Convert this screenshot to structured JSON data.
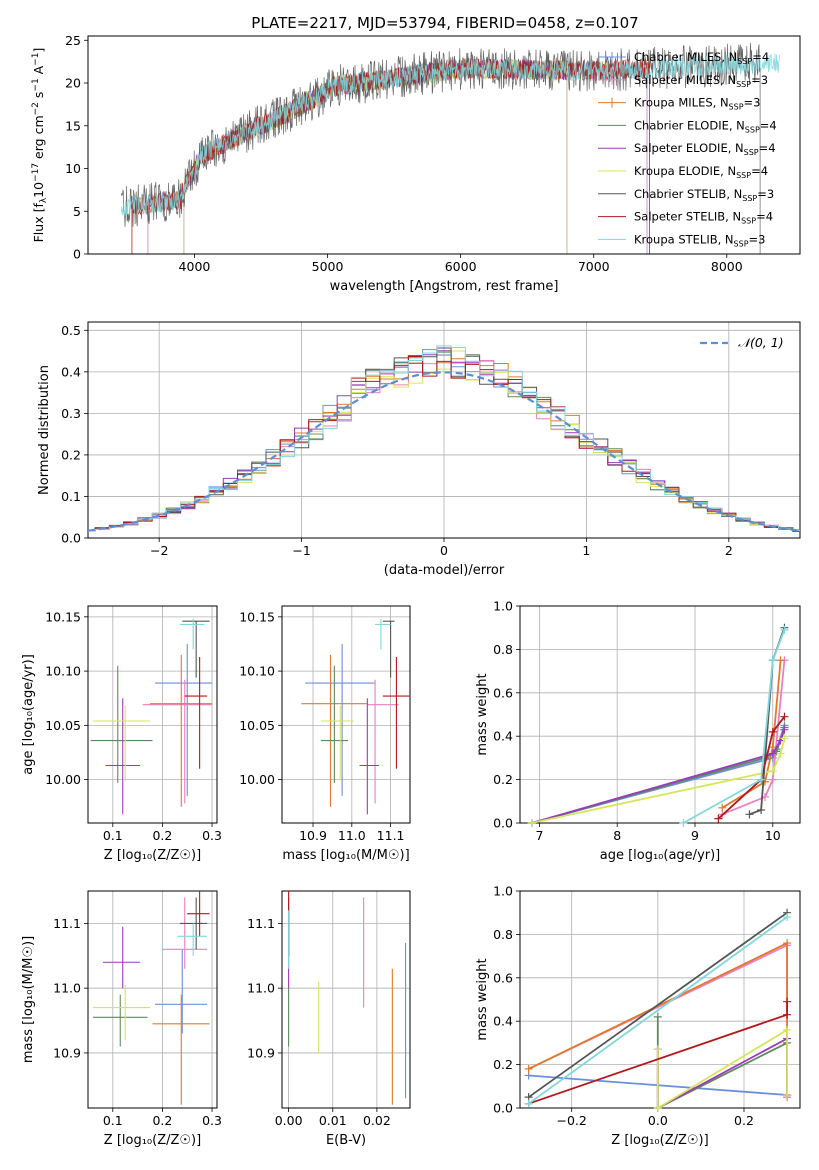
{
  "figure": {
    "title": "PLATE=2217, MJD=53794, FIBERID=0458, z=0.107"
  },
  "colors": {
    "Chabrier MILES": "#6a8fdc",
    "Salpeter MILES": "#ed7fc0",
    "Kroupa MILES": "#e07a2a",
    "Chabrier ELODIE": "#5f8a5f",
    "Salpeter ELODIE": "#9a3cb8",
    "Kroupa ELODIE": "#d6e65a",
    "Chabrier STELIB": "#555555",
    "Salpeter STELIB": "#b5171c",
    "Kroupa STELIB": "#7fd8de",
    "normal_curve": "#5b8fd6"
  },
  "chart_data": [
    {
      "id": "spectrum",
      "type": "line",
      "title": "PLATE=2217, MJD=53794, FIBERID=0458, z=0.107",
      "xlabel": "wavelength [Angstrom, rest frame]",
      "ylabel_parts": [
        "Flux [f",
        "λ",
        "10",
        "−17",
        " erg cm",
        "−2",
        " s",
        "−1",
        " A",
        "−1",
        "]"
      ],
      "xlim": [
        3200,
        8550
      ],
      "ylim": [
        0,
        25.5
      ],
      "xticks": [
        4000,
        5000,
        6000,
        7000,
        8000
      ],
      "yticks": [
        0,
        5,
        10,
        15,
        20,
        25
      ],
      "grid": false,
      "legend_position": "right",
      "series": [
        {
          "name": "Chabrier MILES",
          "sub": "SSP",
          "n": "4",
          "color": "#6a8fdc",
          "range": [
            3650,
            7400
          ],
          "marker": true
        },
        {
          "name": "Salpeter MILES",
          "sub": "SSP",
          "n": "3",
          "color": "#ed7fc0",
          "range": [
            3650,
            7400
          ],
          "marker": true
        },
        {
          "name": "Kroupa MILES",
          "sub": "SSP",
          "n": "3",
          "color": "#e07a2a",
          "range": [
            3530,
            7420
          ],
          "marker": true
        },
        {
          "name": "Chabrier ELODIE",
          "sub": "SSP",
          "n": "4",
          "color": "#5f8a5f",
          "range": [
            3920,
            6800
          ],
          "marker": false
        },
        {
          "name": "Salpeter ELODIE",
          "sub": "SSP",
          "n": "4",
          "color": "#9a3cb8",
          "range": [
            3920,
            6800
          ],
          "marker": false
        },
        {
          "name": "Kroupa ELODIE",
          "sub": "SSP",
          "n": "4",
          "color": "#d6e65a",
          "range": [
            3920,
            6800
          ],
          "marker": false
        },
        {
          "name": "Chabrier STELIB",
          "sub": "SSP",
          "n": "3",
          "color": "#555555",
          "range": [
            3450,
            8250
          ],
          "marker": false
        },
        {
          "name": "Salpeter STELIB",
          "sub": "SSP",
          "n": "4",
          "color": "#b5171c",
          "range": [
            3530,
            7420
          ],
          "marker": false
        },
        {
          "name": "Kroupa STELIB",
          "sub": "SSP",
          "n": "3",
          "color": "#7fd8de",
          "range": [
            3450,
            8400
          ],
          "marker": false
        }
      ]
    },
    {
      "id": "residuals",
      "type": "line",
      "xlabel": "(data-model)/error",
      "ylabel": "Normed distribution",
      "xlim": [
        -2.5,
        2.5
      ],
      "ylim": [
        0,
        0.52
      ],
      "xticks": [
        -2,
        -1,
        0,
        1,
        2
      ],
      "yticks": [
        0.0,
        0.1,
        0.2,
        0.3,
        0.4,
        0.5
      ],
      "grid": true,
      "legend_position": "top-right",
      "legend_label": "𝒩(0, 1)",
      "bin_width": 0.1,
      "series_colors": [
        "#6a8fdc",
        "#ed7fc0",
        "#e07a2a",
        "#5f8a5f",
        "#9a3cb8",
        "#d6e65a",
        "#555555",
        "#b5171c",
        "#7fd8de"
      ]
    },
    {
      "id": "age-vs-Z",
      "type": "scatter",
      "xlabel": "Z [log₁₀(Z/Z☉)]",
      "ylabel": "age  [log₁₀(age/yr)]",
      "xlim": [
        0.05,
        0.31
      ],
      "ylim": [
        9.96,
        10.16
      ],
      "xticks": [
        0.1,
        0.2,
        0.3
      ],
      "yticks": [
        10.0,
        10.05,
        10.1,
        10.15
      ],
      "grid": true,
      "points": [
        {
          "x": 0.25,
          "y": 10.089,
          "xerr": [
            0.185,
            0.3
          ],
          "yerr": [
            9.985,
            10.125
          ],
          "color": "#6a8fdc"
        },
        {
          "x": 0.245,
          "y": 10.069,
          "xerr": [
            0.16,
            0.3
          ],
          "yerr": [
            9.978,
            10.092
          ],
          "color": "#ed7fc0"
        },
        {
          "x": 0.238,
          "y": 10.07,
          "xerr": [
            0.175,
            0.3
          ],
          "yerr": [
            9.975,
            10.115
          ],
          "color": "#e07a2a"
        },
        {
          "x": 0.11,
          "y": 10.036,
          "xerr": [
            0.055,
            0.18
          ],
          "yerr": [
            9.997,
            10.105
          ],
          "color": "#5f8a5f"
        },
        {
          "x": 0.12,
          "y": 10.013,
          "xerr": [
            0.085,
            0.155
          ],
          "yerr": [
            9.968,
            10.075
          ],
          "color": "#9a3cb8"
        },
        {
          "x": 0.125,
          "y": 10.054,
          "xerr": [
            0.06,
            0.175
          ],
          "yerr": [
            9.999,
            10.068
          ],
          "color": "#d6e65a"
        },
        {
          "x": 0.268,
          "y": 10.146,
          "xerr": [
            0.24,
            0.295
          ],
          "yerr": [
            10.094,
            10.146
          ],
          "color": "#555555"
        },
        {
          "x": 0.275,
          "y": 10.077,
          "xerr": [
            0.245,
            0.29
          ],
          "yerr": [
            10.01,
            10.113
          ],
          "color": "#b5171c"
        },
        {
          "x": 0.262,
          "y": 10.143,
          "xerr": [
            0.235,
            0.285
          ],
          "yerr": [
            10.12,
            10.148
          ],
          "color": "#7fd8de"
        }
      ]
    },
    {
      "id": "age-vs-mass",
      "type": "scatter",
      "xlabel": "mass [log₁₀(M/M☉)]",
      "ylabel": "",
      "xlim": [
        10.82,
        11.15
      ],
      "ylim": [
        9.96,
        10.16
      ],
      "xticks": [
        10.9,
        11.0,
        11.1
      ],
      "yticks": [
        10.0,
        10.05,
        10.1,
        10.15
      ],
      "grid": true,
      "points": [
        {
          "x": 10.975,
          "y": 10.089,
          "xerr": [
            10.88,
            11.06
          ],
          "yerr": [
            9.985,
            10.125
          ],
          "color": "#6a8fdc"
        },
        {
          "x": 11.06,
          "y": 10.069,
          "xerr": [
            11.04,
            11.12
          ],
          "yerr": [
            9.978,
            10.092
          ],
          "color": "#ed7fc0"
        },
        {
          "x": 10.945,
          "y": 10.07,
          "xerr": [
            10.87,
            11.04
          ],
          "yerr": [
            9.975,
            10.115
          ],
          "color": "#e07a2a"
        },
        {
          "x": 10.955,
          "y": 10.036,
          "xerr": [
            10.92,
            10.99
          ],
          "yerr": [
            9.997,
            10.105
          ],
          "color": "#5f8a5f"
        },
        {
          "x": 11.04,
          "y": 10.013,
          "xerr": [
            11.02,
            11.07
          ],
          "yerr": [
            9.968,
            10.075
          ],
          "color": "#9a3cb8"
        },
        {
          "x": 10.97,
          "y": 10.054,
          "xerr": [
            10.92,
            11.005
          ],
          "yerr": [
            9.999,
            10.068
          ],
          "color": "#d6e65a"
        },
        {
          "x": 11.1,
          "y": 10.146,
          "xerr": [
            11.08,
            11.11
          ],
          "yerr": [
            10.094,
            10.146
          ],
          "color": "#555555"
        },
        {
          "x": 11.115,
          "y": 10.077,
          "xerr": [
            11.08,
            11.15
          ],
          "yerr": [
            10.01,
            10.113
          ],
          "color": "#b5171c"
        },
        {
          "x": 11.075,
          "y": 10.143,
          "xerr": [
            11.06,
            11.1
          ],
          "yerr": [
            10.12,
            10.148
          ],
          "color": "#7fd8de"
        }
      ]
    },
    {
      "id": "mass-weight-vs-age",
      "type": "line",
      "xlabel": "age  [log₁₀(age/yr)]",
      "ylabel": "mass weight",
      "xlim": [
        6.75,
        10.35
      ],
      "ylim": [
        0,
        1.0
      ],
      "xticks": [
        7,
        8,
        9,
        10
      ],
      "yticks": [
        0.0,
        0.2,
        0.4,
        0.6,
        0.8,
        1.0
      ],
      "grid": true,
      "series": [
        {
          "color": "#6a8fdc",
          "x": [
            6.9,
            10.0,
            10.05,
            10.15
          ],
          "y": [
            0.0,
            0.3,
            0.34,
            0.45
          ],
          "marker": true
        },
        {
          "color": "#ed7fc0",
          "x": [
            9.35,
            9.9,
            10.0,
            10.15
          ],
          "y": [
            0.04,
            0.12,
            0.2,
            0.75
          ],
          "marker": true
        },
        {
          "color": "#e07a2a",
          "x": [
            9.35,
            9.9,
            10.0,
            10.1
          ],
          "y": [
            0.07,
            0.19,
            0.35,
            0.75
          ],
          "marker": true
        },
        {
          "color": "#5f8a5f",
          "x": [
            6.9,
            9.9,
            10.05,
            10.15
          ],
          "y": [
            0.0,
            0.3,
            0.33,
            0.44
          ],
          "marker": true
        },
        {
          "color": "#9a3cb8",
          "x": [
            6.9,
            10.0,
            10.1,
            10.15
          ],
          "y": [
            0.0,
            0.32,
            0.38,
            0.43
          ],
          "marker": true
        },
        {
          "color": "#d6e65a",
          "x": [
            6.9,
            10.0,
            10.1,
            10.15
          ],
          "y": [
            0.0,
            0.24,
            0.32,
            0.39
          ],
          "marker": true
        },
        {
          "color": "#555555",
          "x": [
            9.7,
            9.85,
            10.0,
            10.15
          ],
          "y": [
            0.04,
            0.06,
            0.75,
            0.9
          ],
          "marker": true
        },
        {
          "color": "#b5171c",
          "x": [
            9.3,
            9.85,
            10.0,
            10.15
          ],
          "y": [
            0.02,
            0.2,
            0.42,
            0.49
          ],
          "marker": true
        },
        {
          "color": "#7fd8de",
          "x": [
            8.85,
            9.85,
            10.0,
            10.15
          ],
          "y": [
            0.0,
            0.2,
            0.75,
            0.89
          ],
          "marker": true
        }
      ]
    },
    {
      "id": "mass-vs-Z",
      "type": "scatter",
      "xlabel": "Z [log₁₀(Z/Z☉)]",
      "ylabel": "mass [log₁₀(M/M☉)]",
      "xlim": [
        0.05,
        0.31
      ],
      "ylim": [
        10.815,
        11.15
      ],
      "xticks": [
        0.1,
        0.2,
        0.3
      ],
      "yticks": [
        10.9,
        11.0,
        11.1
      ],
      "grid": true,
      "points": [
        {
          "x": 0.24,
          "y": 10.975,
          "xerr": [
            0.185,
            0.29
          ],
          "yerr": [
            10.93,
            11.06
          ],
          "color": "#6a8fdc"
        },
        {
          "x": 0.245,
          "y": 11.06,
          "xerr": [
            0.2,
            0.29
          ],
          "yerr": [
            11.03,
            11.14
          ],
          "color": "#ed7fc0"
        },
        {
          "x": 0.238,
          "y": 10.945,
          "xerr": [
            0.18,
            0.295
          ],
          "yerr": [
            10.82,
            10.99
          ],
          "color": "#e07a2a"
        },
        {
          "x": 0.115,
          "y": 10.955,
          "xerr": [
            0.06,
            0.17
          ],
          "yerr": [
            10.91,
            10.99
          ],
          "color": "#5f8a5f"
        },
        {
          "x": 0.12,
          "y": 11.04,
          "xerr": [
            0.08,
            0.155
          ],
          "yerr": [
            11.0,
            11.095
          ],
          "color": "#9a3cb8"
        },
        {
          "x": 0.125,
          "y": 10.97,
          "xerr": [
            0.06,
            0.175
          ],
          "yerr": [
            10.92,
            11.005
          ],
          "color": "#d6e65a"
        },
        {
          "x": 0.268,
          "y": 11.1,
          "xerr": [
            0.235,
            0.29
          ],
          "yerr": [
            11.06,
            11.14
          ],
          "color": "#555555"
        },
        {
          "x": 0.275,
          "y": 11.115,
          "xerr": [
            0.25,
            0.295
          ],
          "yerr": [
            11.08,
            11.15
          ],
          "color": "#b5171c"
        },
        {
          "x": 0.262,
          "y": 11.08,
          "xerr": [
            0.23,
            0.29
          ],
          "yerr": [
            11.05,
            11.1
          ],
          "color": "#7fd8de"
        }
      ]
    },
    {
      "id": "mass-vs-EBV",
      "type": "scatter",
      "xlabel": "E(B-V)",
      "ylabel": "",
      "xlim": [
        -0.0015,
        0.0275
      ],
      "ylim": [
        10.815,
        11.15
      ],
      "xticks": [
        0.0,
        0.01,
        0.02
      ],
      "yticks": [
        10.9,
        11.0,
        11.1
      ],
      "grid": true,
      "points": [
        {
          "x": 0.0265,
          "y": 10.975,
          "yerr": [
            10.83,
            11.07
          ],
          "color": "#6a8fdc"
        },
        {
          "x": 0.017,
          "y": 11.06,
          "yerr": [
            10.97,
            11.14
          ],
          "color": "#ed7fc0"
        },
        {
          "x": 0.0235,
          "y": 10.945,
          "yerr": [
            10.82,
            11.03
          ],
          "color": "#e07a2a"
        },
        {
          "x": 0.0,
          "y": 10.955,
          "yerr": [
            10.91,
            11.0
          ],
          "color": "#5f8a5f"
        },
        {
          "x": 0.0,
          "y": 11.04,
          "yerr": [
            11.0,
            11.12
          ],
          "color": "#9a3cb8"
        },
        {
          "x": 0.0068,
          "y": 10.97,
          "yerr": [
            10.9,
            11.01
          ],
          "color": "#d6e65a"
        },
        {
          "x": 0.0,
          "y": 11.1,
          "yerr": [
            11.05,
            11.14
          ],
          "color": "#555555"
        },
        {
          "x": 0.0,
          "y": 11.115,
          "yerr": [
            11.05,
            11.15
          ],
          "color": "#b5171c"
        },
        {
          "x": 0.0,
          "y": 11.08,
          "yerr": [
            11.03,
            11.12
          ],
          "color": "#7fd8de"
        }
      ]
    },
    {
      "id": "mass-weight-vs-Z",
      "type": "line",
      "xlabel": "Z [log₁₀(Z/Z☉)]",
      "ylabel": "mass weight",
      "xlim": [
        -0.32,
        0.33
      ],
      "ylim": [
        0,
        1.0
      ],
      "xticks": [
        -0.2,
        0.0,
        0.2
      ],
      "yticks": [
        0.0,
        0.2,
        0.4,
        0.6,
        0.8,
        1.0
      ],
      "grid": true,
      "series": [
        {
          "color": "#6a8fdc",
          "x": [
            -0.3,
            0.3,
            0.3
          ],
          "y": [
            0.15,
            0.06,
            0.05
          ],
          "marker": true
        },
        {
          "color": "#ed7fc0",
          "x": [
            -0.3,
            0.3,
            0.3
          ],
          "y": [
            0.18,
            0.75,
            0.05
          ],
          "marker": true
        },
        {
          "color": "#e07a2a",
          "x": [
            -0.3,
            0.3,
            0.3
          ],
          "y": [
            0.18,
            0.76,
            0.06
          ],
          "marker": true
        },
        {
          "color": "#5f8a5f",
          "x": [
            0.0,
            0.0,
            0.3,
            0.3
          ],
          "y": [
            0.42,
            0.0,
            0.3,
            0.06
          ],
          "marker": true
        },
        {
          "color": "#9a3cb8",
          "x": [
            0.0,
            0.0,
            0.3,
            0.3
          ],
          "y": [
            0.27,
            0.0,
            0.32,
            0.06
          ],
          "marker": true
        },
        {
          "color": "#d6e65a",
          "x": [
            0.0,
            0.0,
            0.3,
            0.3
          ],
          "y": [
            0.27,
            0.0,
            0.36,
            0.06
          ],
          "marker": true
        },
        {
          "color": "#555555",
          "x": [
            -0.3,
            0.3
          ],
          "y": [
            0.05,
            0.9
          ],
          "marker": true
        },
        {
          "color": "#b5171c",
          "x": [
            -0.3,
            0.3,
            0.3
          ],
          "y": [
            0.02,
            0.43,
            0.49
          ],
          "marker": true
        },
        {
          "color": "#7fd8de",
          "x": [
            -0.3,
            0.3
          ],
          "y": [
            0.02,
            0.88
          ],
          "marker": true
        }
      ]
    }
  ]
}
